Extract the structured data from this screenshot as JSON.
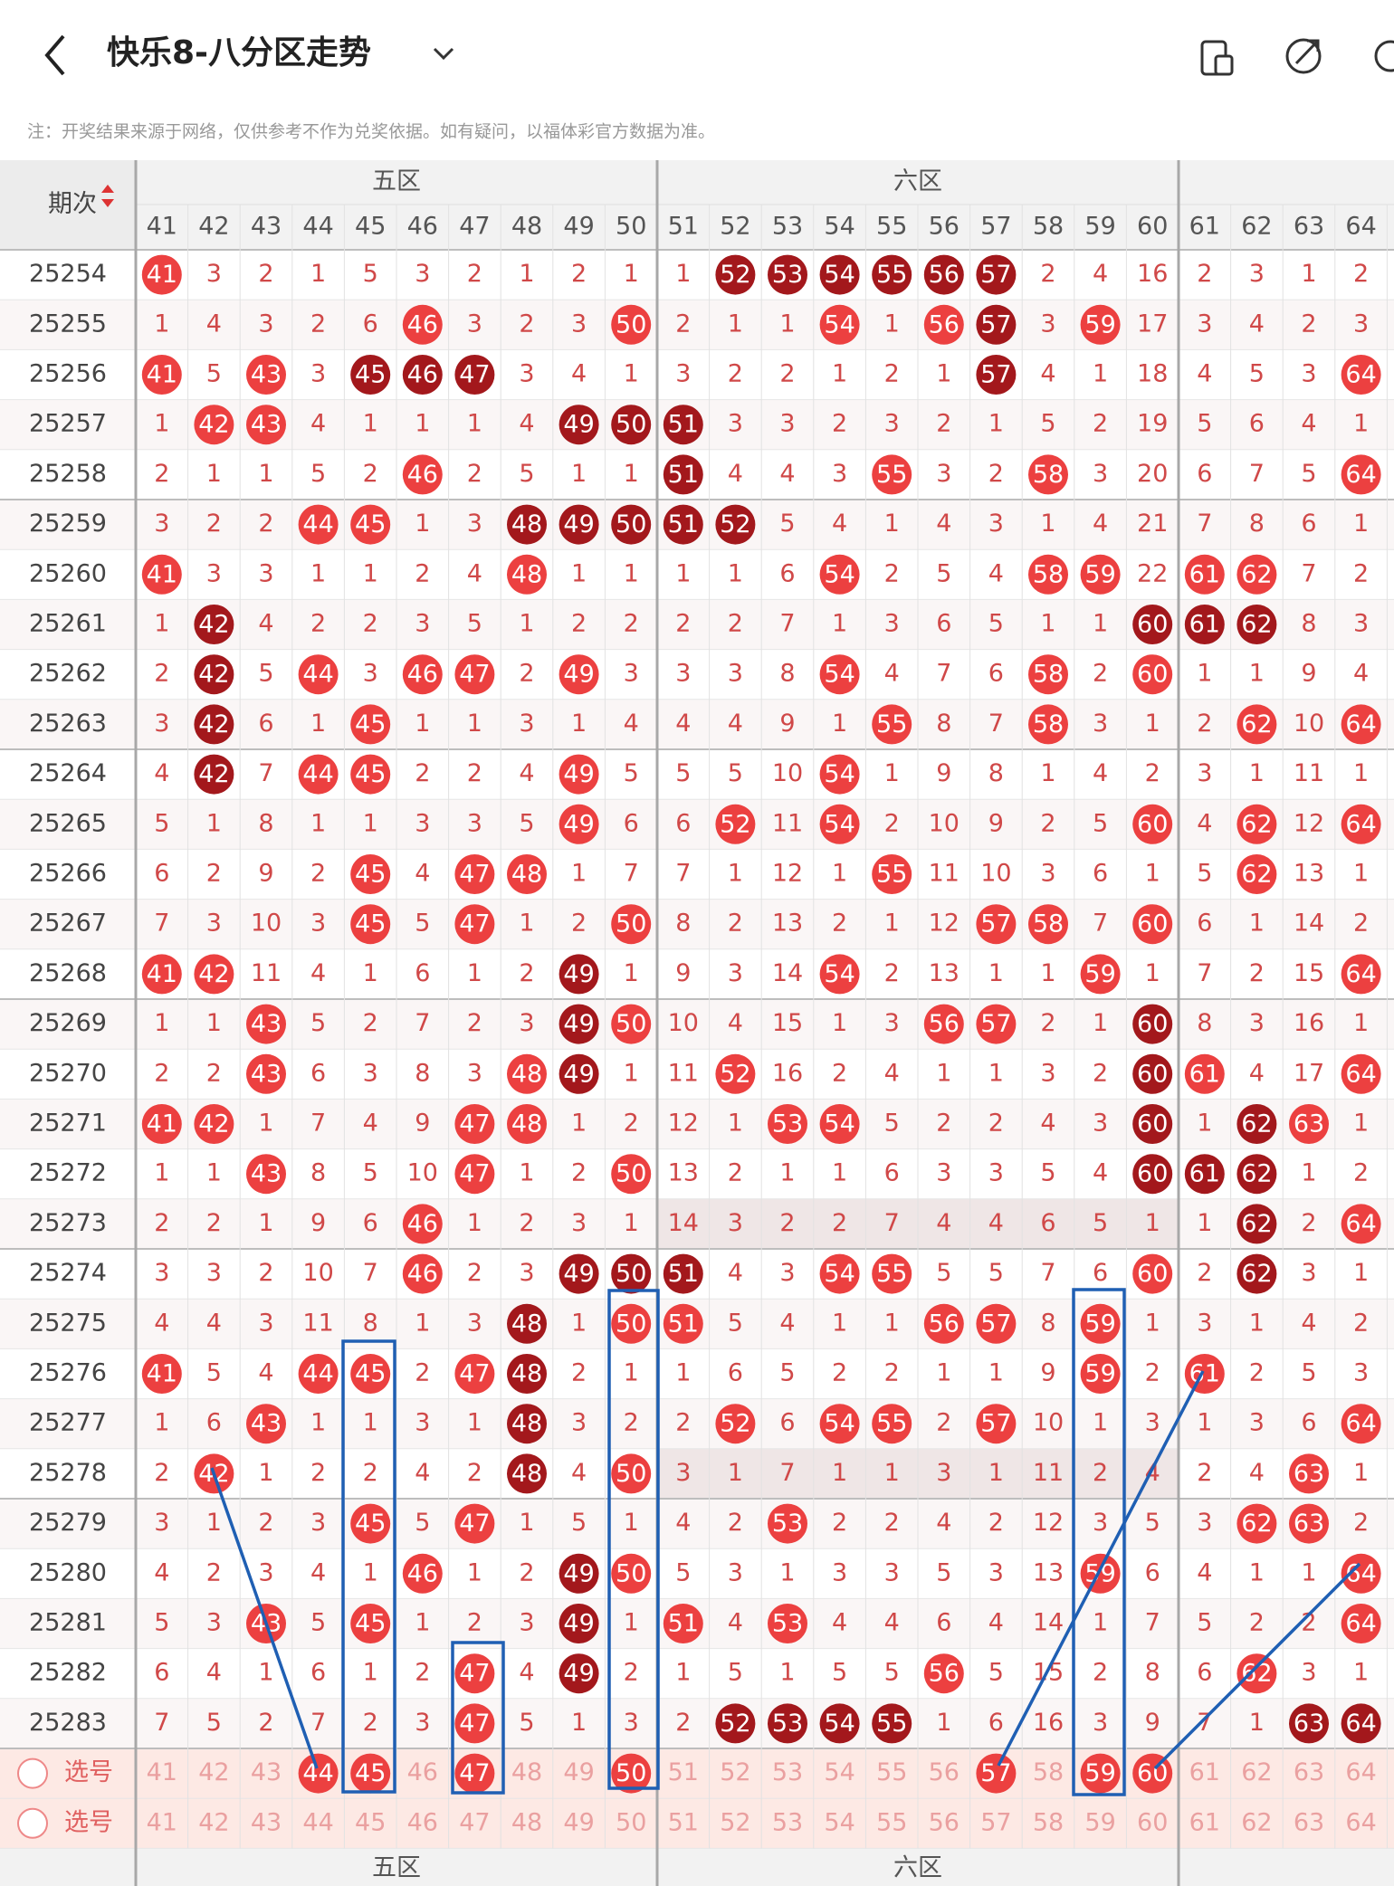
{
  "header": {
    "title": "快乐8-八分区走势",
    "note": "注：开奖结果来源于网络，仅供参考不作为兑奖依据。如有疑问，以福体彩官方数据为准。"
  },
  "table": {
    "period_label": "期次",
    "zones": [
      "五区",
      "六区"
    ],
    "select_label": "选号",
    "columns": [
      41,
      42,
      43,
      44,
      45,
      46,
      47,
      48,
      49,
      50,
      51,
      52,
      53,
      54,
      55,
      56,
      57,
      58,
      59,
      60,
      61,
      62,
      63,
      64
    ],
    "rows": [
      {
        "period": 25254,
        "values": [
          41,
          3,
          2,
          1,
          5,
          3,
          2,
          1,
          2,
          1,
          1,
          52,
          53,
          54,
          55,
          56,
          57,
          2,
          4,
          16,
          2,
          3,
          1,
          2
        ],
        "dark": [
          52,
          53,
          54,
          55,
          56,
          57
        ]
      },
      {
        "period": 25255,
        "values": [
          1,
          4,
          3,
          2,
          6,
          46,
          3,
          2,
          3,
          50,
          2,
          1,
          1,
          54,
          1,
          56,
          57,
          3,
          59,
          17,
          3,
          4,
          2,
          3
        ],
        "dark": [
          57
        ]
      },
      {
        "period": 25256,
        "values": [
          41,
          5,
          43,
          3,
          45,
          46,
          47,
          3,
          4,
          1,
          3,
          2,
          2,
          1,
          2,
          1,
          57,
          4,
          1,
          18,
          4,
          5,
          3,
          64
        ],
        "dark": [
          45,
          46,
          47,
          57
        ]
      },
      {
        "period": 25257,
        "values": [
          1,
          42,
          43,
          4,
          1,
          1,
          1,
          4,
          49,
          50,
          51,
          3,
          3,
          2,
          3,
          2,
          1,
          5,
          2,
          19,
          5,
          6,
          4,
          1
        ],
        "dark": [
          49,
          50,
          51
        ]
      },
      {
        "period": 25258,
        "values": [
          2,
          1,
          1,
          5,
          2,
          46,
          2,
          5,
          1,
          1,
          51,
          4,
          4,
          3,
          55,
          3,
          2,
          58,
          3,
          20,
          6,
          7,
          5,
          64
        ],
        "dark": [
          51
        ]
      },
      {
        "period": 25259,
        "values": [
          3,
          2,
          2,
          44,
          45,
          1,
          3,
          48,
          49,
          50,
          51,
          52,
          5,
          4,
          1,
          4,
          3,
          1,
          4,
          21,
          7,
          8,
          6,
          1
        ],
        "dark": [
          48,
          49,
          50,
          51,
          52
        ]
      },
      {
        "period": 25260,
        "values": [
          41,
          3,
          3,
          1,
          1,
          2,
          4,
          48,
          1,
          1,
          1,
          1,
          6,
          54,
          2,
          5,
          4,
          58,
          59,
          22,
          61,
          62,
          7,
          2
        ],
        "dark": []
      },
      {
        "period": 25261,
        "values": [
          1,
          42,
          4,
          2,
          2,
          3,
          5,
          1,
          2,
          2,
          2,
          2,
          7,
          1,
          3,
          6,
          5,
          1,
          1,
          60,
          61,
          62,
          8,
          3
        ],
        "dark": [
          42,
          60,
          61,
          62
        ]
      },
      {
        "period": 25262,
        "values": [
          2,
          42,
          5,
          44,
          3,
          46,
          47,
          2,
          49,
          3,
          3,
          3,
          8,
          54,
          4,
          7,
          6,
          58,
          2,
          60,
          1,
          1,
          9,
          4
        ],
        "dark": [
          42
        ]
      },
      {
        "period": 25263,
        "values": [
          3,
          42,
          6,
          1,
          45,
          1,
          1,
          3,
          1,
          4,
          4,
          4,
          9,
          1,
          55,
          8,
          7,
          58,
          3,
          1,
          2,
          62,
          10,
          64
        ],
        "dark": [
          42
        ]
      },
      {
        "period": 25264,
        "values": [
          4,
          42,
          7,
          44,
          45,
          2,
          2,
          4,
          49,
          5,
          5,
          5,
          10,
          54,
          1,
          9,
          8,
          1,
          4,
          2,
          3,
          1,
          11,
          1
        ],
        "dark": [
          42
        ]
      },
      {
        "period": 25265,
        "values": [
          5,
          1,
          8,
          1,
          1,
          3,
          3,
          5,
          49,
          6,
          6,
          52,
          11,
          54,
          2,
          10,
          9,
          2,
          5,
          60,
          4,
          62,
          12,
          64
        ],
        "dark": []
      },
      {
        "period": 25266,
        "values": [
          6,
          2,
          9,
          2,
          45,
          4,
          47,
          48,
          1,
          7,
          7,
          1,
          12,
          1,
          55,
          11,
          10,
          3,
          6,
          1,
          5,
          62,
          13,
          1
        ],
        "dark": []
      },
      {
        "period": 25267,
        "values": [
          7,
          3,
          10,
          3,
          45,
          5,
          47,
          1,
          2,
          50,
          8,
          2,
          13,
          2,
          1,
          12,
          57,
          58,
          7,
          60,
          6,
          1,
          14,
          2
        ],
        "dark": []
      },
      {
        "period": 25268,
        "values": [
          41,
          42,
          11,
          4,
          1,
          6,
          1,
          2,
          49,
          1,
          9,
          3,
          14,
          54,
          2,
          13,
          1,
          1,
          59,
          1,
          7,
          2,
          15,
          64
        ],
        "dark": [
          49
        ]
      },
      {
        "period": 25269,
        "values": [
          1,
          1,
          43,
          5,
          2,
          7,
          2,
          3,
          49,
          50,
          10,
          4,
          15,
          1,
          3,
          56,
          57,
          2,
          1,
          60,
          8,
          3,
          16,
          1
        ],
        "dark": [
          49,
          60
        ]
      },
      {
        "period": 25270,
        "values": [
          2,
          2,
          43,
          6,
          3,
          8,
          3,
          48,
          49,
          1,
          11,
          52,
          16,
          2,
          4,
          1,
          1,
          3,
          2,
          60,
          61,
          4,
          17,
          64
        ],
        "dark": [
          49,
          60
        ]
      },
      {
        "period": 25271,
        "values": [
          41,
          42,
          1,
          7,
          4,
          9,
          47,
          48,
          1,
          2,
          12,
          1,
          53,
          54,
          5,
          2,
          2,
          4,
          3,
          60,
          1,
          62,
          63,
          1
        ],
        "dark": [
          60,
          62
        ]
      },
      {
        "period": 25272,
        "values": [
          1,
          1,
          43,
          8,
          5,
          10,
          47,
          1,
          2,
          50,
          13,
          2,
          1,
          1,
          6,
          3,
          3,
          5,
          4,
          60,
          61,
          62,
          1,
          2
        ],
        "dark": [
          60,
          61,
          62
        ]
      },
      {
        "period": 25273,
        "values": [
          2,
          2,
          1,
          9,
          6,
          46,
          1,
          2,
          3,
          1,
          14,
          3,
          2,
          2,
          7,
          4,
          4,
          6,
          5,
          1,
          1,
          62,
          2,
          64
        ],
        "dark": [
          62
        ]
      },
      {
        "period": 25274,
        "values": [
          3,
          3,
          2,
          10,
          7,
          46,
          2,
          3,
          49,
          50,
          51,
          4,
          3,
          54,
          55,
          5,
          5,
          7,
          6,
          60,
          2,
          62,
          3,
          1
        ],
        "dark": [
          49,
          50,
          51,
          62
        ]
      },
      {
        "period": 25275,
        "values": [
          4,
          4,
          3,
          11,
          8,
          1,
          3,
          48,
          1,
          50,
          51,
          5,
          4,
          1,
          1,
          56,
          57,
          8,
          59,
          1,
          3,
          1,
          4,
          2
        ],
        "dark": [
          48
        ]
      },
      {
        "period": 25276,
        "values": [
          41,
          5,
          4,
          44,
          45,
          2,
          47,
          48,
          2,
          1,
          1,
          6,
          5,
          2,
          2,
          1,
          1,
          9,
          59,
          2,
          61,
          2,
          5,
          3
        ],
        "dark": [
          48
        ]
      },
      {
        "period": 25277,
        "values": [
          1,
          6,
          43,
          1,
          1,
          3,
          1,
          48,
          3,
          2,
          2,
          52,
          6,
          54,
          55,
          2,
          57,
          10,
          1,
          3,
          1,
          3,
          6,
          64
        ],
        "dark": [
          48
        ]
      },
      {
        "period": 25278,
        "values": [
          2,
          42,
          1,
          2,
          2,
          4,
          2,
          48,
          4,
          50,
          3,
          1,
          7,
          1,
          1,
          3,
          1,
          11,
          2,
          4,
          2,
          4,
          63,
          1
        ],
        "dark": [
          48
        ]
      },
      {
        "period": 25279,
        "values": [
          3,
          1,
          2,
          3,
          45,
          5,
          47,
          1,
          5,
          1,
          4,
          2,
          53,
          2,
          2,
          4,
          2,
          12,
          3,
          5,
          3,
          62,
          63,
          2
        ],
        "dark": []
      },
      {
        "period": 25280,
        "values": [
          4,
          2,
          3,
          4,
          1,
          46,
          1,
          2,
          49,
          50,
          5,
          3,
          1,
          3,
          3,
          5,
          3,
          13,
          59,
          6,
          4,
          1,
          1,
          64
        ],
        "dark": [
          49
        ]
      },
      {
        "period": 25281,
        "values": [
          5,
          3,
          43,
          5,
          45,
          1,
          2,
          3,
          49,
          1,
          51,
          4,
          53,
          4,
          4,
          6,
          4,
          14,
          1,
          7,
          5,
          2,
          2,
          64
        ],
        "dark": [
          49
        ]
      },
      {
        "period": 25282,
        "values": [
          6,
          4,
          1,
          6,
          1,
          2,
          47,
          4,
          49,
          2,
          1,
          5,
          1,
          5,
          5,
          56,
          5,
          15,
          2,
          8,
          6,
          62,
          3,
          1
        ],
        "dark": [
          49
        ]
      },
      {
        "period": 25283,
        "values": [
          7,
          5,
          2,
          7,
          2,
          3,
          47,
          5,
          1,
          3,
          2,
          52,
          53,
          54,
          55,
          1,
          6,
          16,
          3,
          9,
          7,
          1,
          63,
          64
        ],
        "dark": [
          52,
          53,
          54,
          55,
          63,
          64
        ]
      }
    ],
    "selected": [
      44,
      45,
      47,
      50,
      57,
      59,
      60
    ]
  }
}
